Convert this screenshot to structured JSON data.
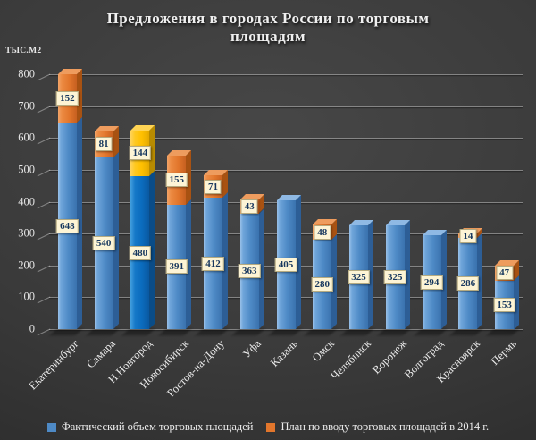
{
  "chart_data": {
    "type": "bar",
    "stacked": true,
    "title": "Предложения  в городах России по торговым площадям",
    "title_lines": [
      "Предложения  в городах России по торговым",
      "площадям"
    ],
    "ylabel": "ТЫС.М2",
    "ylim": [
      0,
      800
    ],
    "yticks": [
      0,
      100,
      200,
      300,
      400,
      500,
      600,
      700,
      800
    ],
    "grid": true,
    "legend_position": "bottom",
    "categories": [
      "Екатеринбург",
      "Самара",
      "Н.Новгород",
      "Новосибирск",
      "Ростов-на-Дону",
      "Уфа",
      "Казань",
      "Омск",
      "Челябинск",
      "Воронеж",
      "Волгоград",
      "Красноярск",
      "Пермь"
    ],
    "series": [
      {
        "name": "Фактический объем торговых площадей",
        "color": "#4E8AC6",
        "values": [
          648,
          540,
          480,
          391,
          412,
          363,
          405,
          280,
          325,
          325,
          294,
          286,
          153
        ]
      },
      {
        "name": "План по вводу торговых площадей в 2014 г.",
        "color": "#E2762C",
        "values": [
          152,
          81,
          144,
          155,
          71,
          43,
          0,
          48,
          0,
          0,
          0,
          14,
          47
        ]
      }
    ],
    "highlight": {
      "index": 2,
      "category": "Н.Новгород",
      "actual_color": "#0B6CBE",
      "plan_color": "#FFC000"
    },
    "label_box": {
      "background": "#FDF4D5",
      "border": "#B5AA80",
      "text_color": "#17375E"
    }
  }
}
